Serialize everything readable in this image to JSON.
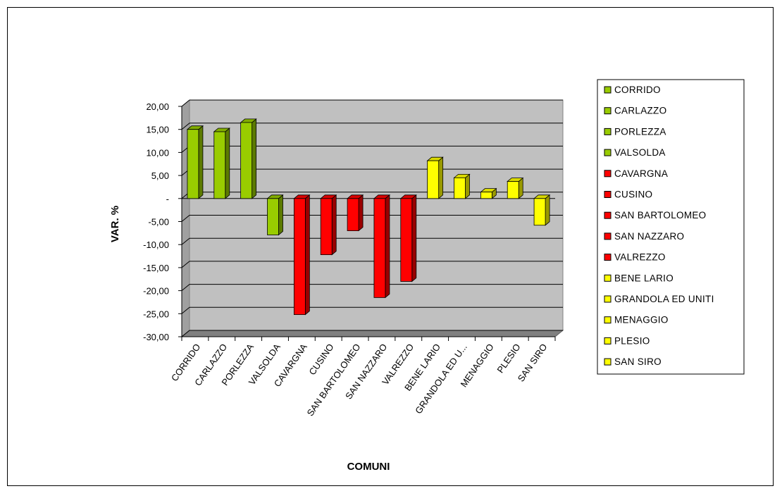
{
  "chart_data": {
    "type": "bar",
    "title": "",
    "xlabel": "COMUNI",
    "ylabel": "VAR. %",
    "ylim": [
      -30,
      20
    ],
    "yticks": [
      20,
      15,
      10,
      5,
      0,
      -5,
      -10,
      -15,
      -20,
      -25,
      -30
    ],
    "ytick_labels": [
      "20,00",
      "15,00",
      "10,00",
      "5,00",
      "-",
      "-5,00",
      "-10,00",
      "-15,00",
      "-20,00",
      "-25,00",
      "-30,00"
    ],
    "grid": true,
    "legend_position": "right",
    "categories": [
      "CORRIDO",
      "CARLAZZO",
      "PORLEZZA",
      "VALSOLDA",
      "CAVARGNA",
      "CUSINO",
      "SAN BARTOLOMEO",
      "SAN NAZZARO",
      "VALREZZO",
      "BENE LARIO",
      "GRANDOLA ED U...",
      "MENAGGIO",
      "PLESIO",
      "SAN SIRO"
    ],
    "values": [
      15.0,
      14.5,
      16.5,
      -7.9,
      -25.2,
      -12.2,
      -7.0,
      -21.5,
      -18.0,
      8.2,
      4.5,
      1.4,
      3.7,
      -5.8
    ],
    "legend_labels": [
      "CORRIDO",
      "CARLAZZO",
      "PORLEZZA",
      "VALSOLDA",
      "CAVARGNA",
      "CUSINO",
      "SAN BARTOLOMEO",
      "SAN NAZZARO",
      "VALREZZO",
      "BENE LARIO",
      "GRANDOLA ED UNITI",
      "MENAGGIO",
      "PLESIO",
      "SAN SIRO"
    ],
    "group_colors": [
      "#99cc00",
      "#99cc00",
      "#99cc00",
      "#99cc00",
      "#ff0000",
      "#ff0000",
      "#ff0000",
      "#ff0000",
      "#ff0000",
      "#ffff00",
      "#ffff00",
      "#ffff00",
      "#ffff00",
      "#ffff00"
    ],
    "plot_background": "#c0c0c0"
  }
}
